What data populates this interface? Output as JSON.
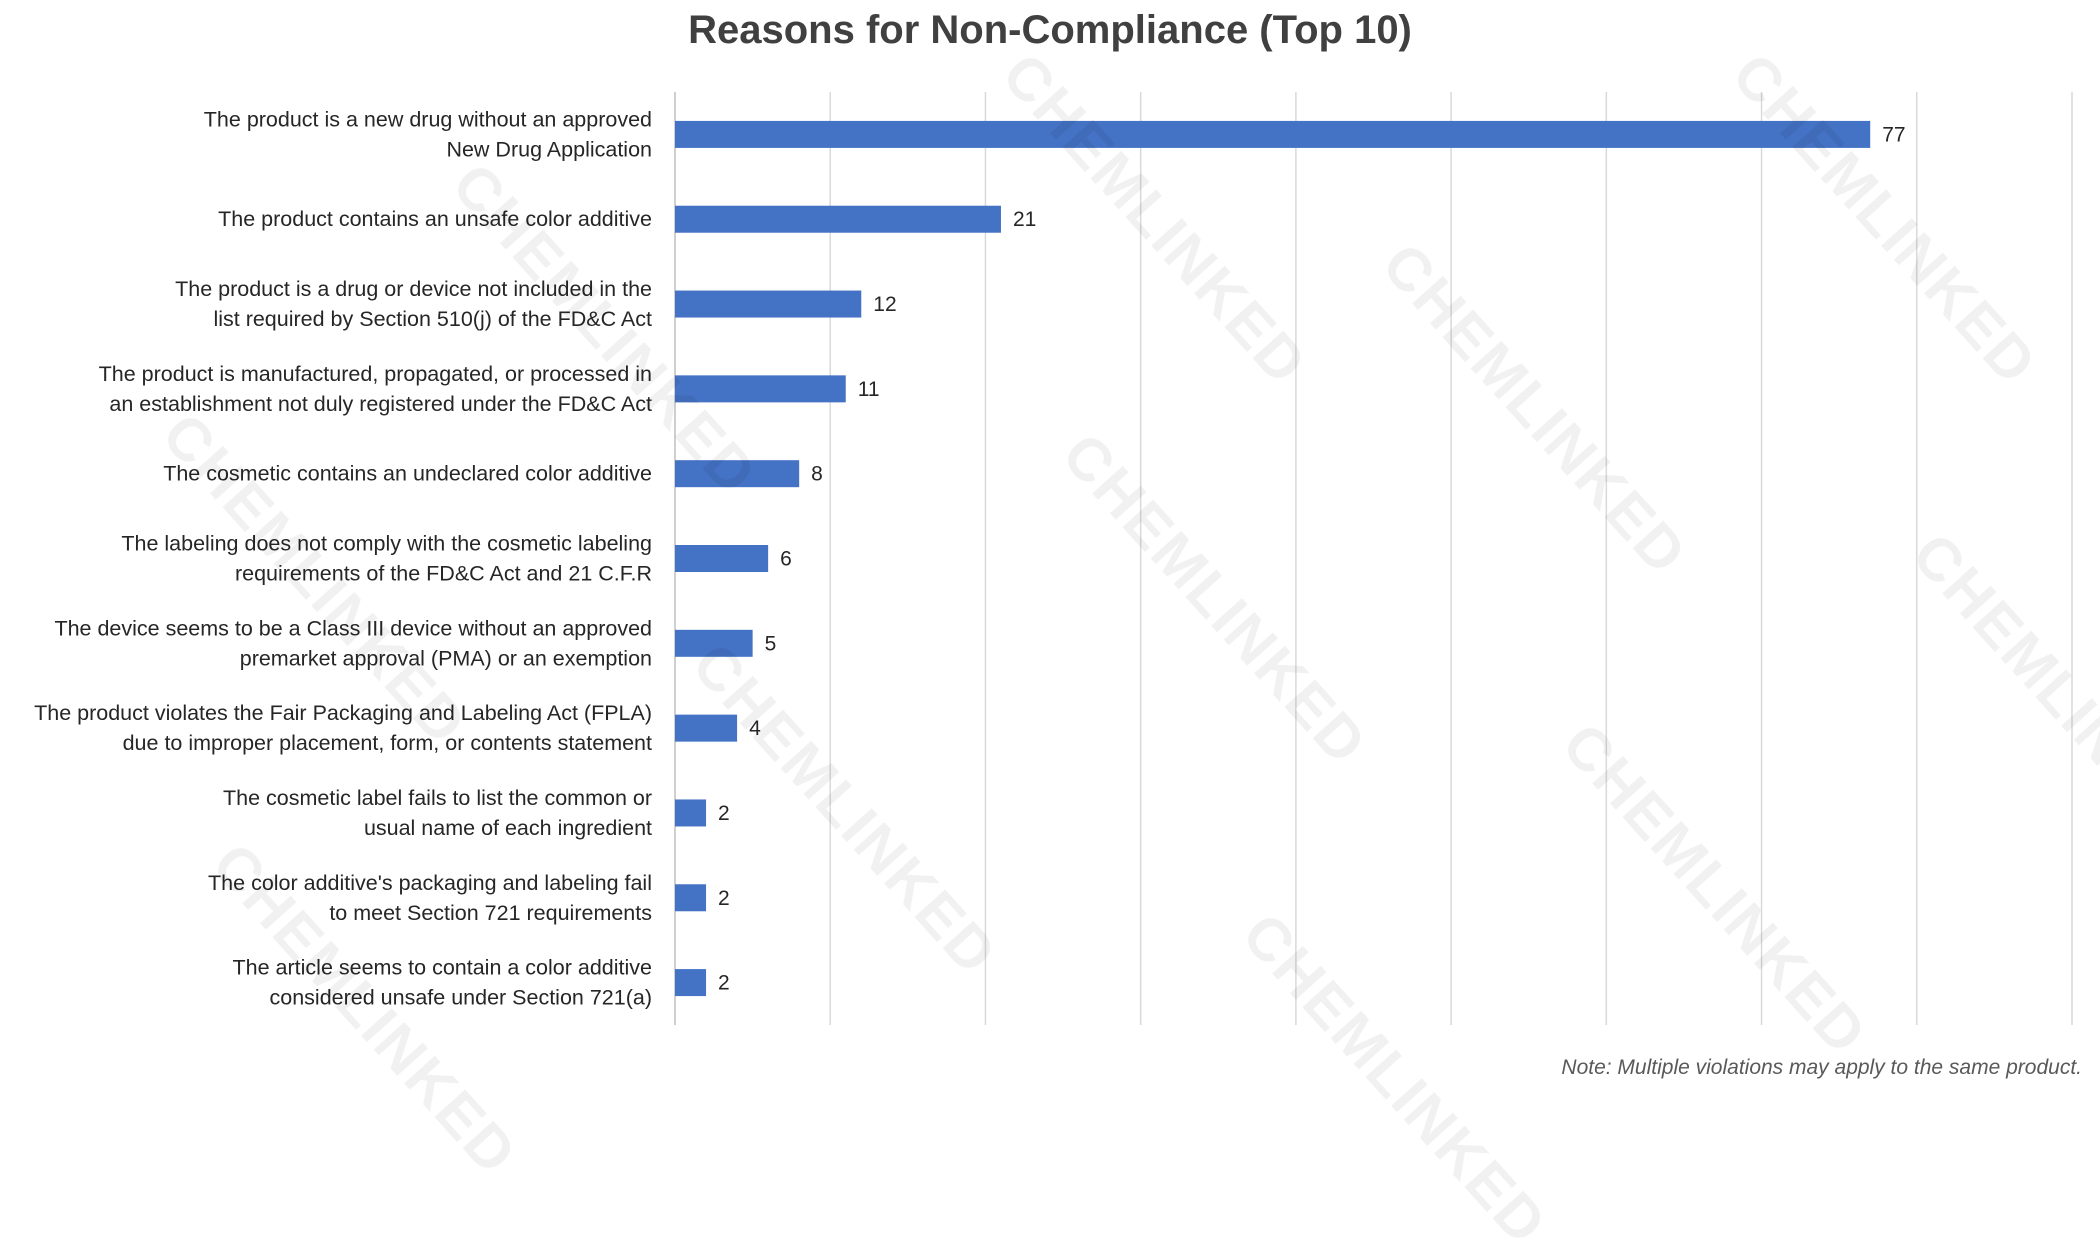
{
  "watermark_text": "CHEMLINKED",
  "note": "Note: Multiple violations may apply to the same product.",
  "colors": {
    "bar": "#4472C4",
    "grid": "#d9d9d9",
    "label": "#262626",
    "title": "#404040"
  },
  "chart_data": {
    "type": "bar",
    "orientation": "horizontal",
    "title": "Reasons for Non-Compliance (Top 10)",
    "categories": [
      [
        "The product is a new drug without an approved",
        "New Drug Application"
      ],
      [
        "The product contains an unsafe color additive"
      ],
      [
        "The product is a drug or device not included in the",
        "list required by Section 510(j) of the FD&C Act"
      ],
      [
        "The product is manufactured, propagated, or processed in",
        "an establishment not duly registered under the FD&C Act"
      ],
      [
        "The cosmetic contains an undeclared color additive"
      ],
      [
        "The labeling does not comply with the cosmetic labeling",
        "requirements of the FD&C Act and 21 C.F.R"
      ],
      [
        "The device seems to be a Class III device without an approved",
        "premarket approval (PMA) or an exemption"
      ],
      [
        "The product violates the Fair Packaging and Labeling Act (FPLA)",
        "due to improper placement, form, or contents statement"
      ],
      [
        "The cosmetic label fails to list the common or",
        "usual name of each ingredient"
      ],
      [
        "The color additive's packaging and labeling fail",
        "to meet Section 721 requirements"
      ],
      [
        "The article seems to contain a color additive",
        "considered unsafe under Section 721(a)"
      ]
    ],
    "values": [
      77,
      21,
      12,
      11,
      8,
      6,
      5,
      4,
      2,
      2,
      2
    ],
    "data_labels": [
      "77",
      "21",
      "12",
      "11",
      "8",
      "6",
      "5",
      "4",
      "2",
      "2",
      "2"
    ],
    "xlim": [
      0,
      90
    ],
    "x_gridline_step": 10,
    "grid": true,
    "legend": "none"
  }
}
